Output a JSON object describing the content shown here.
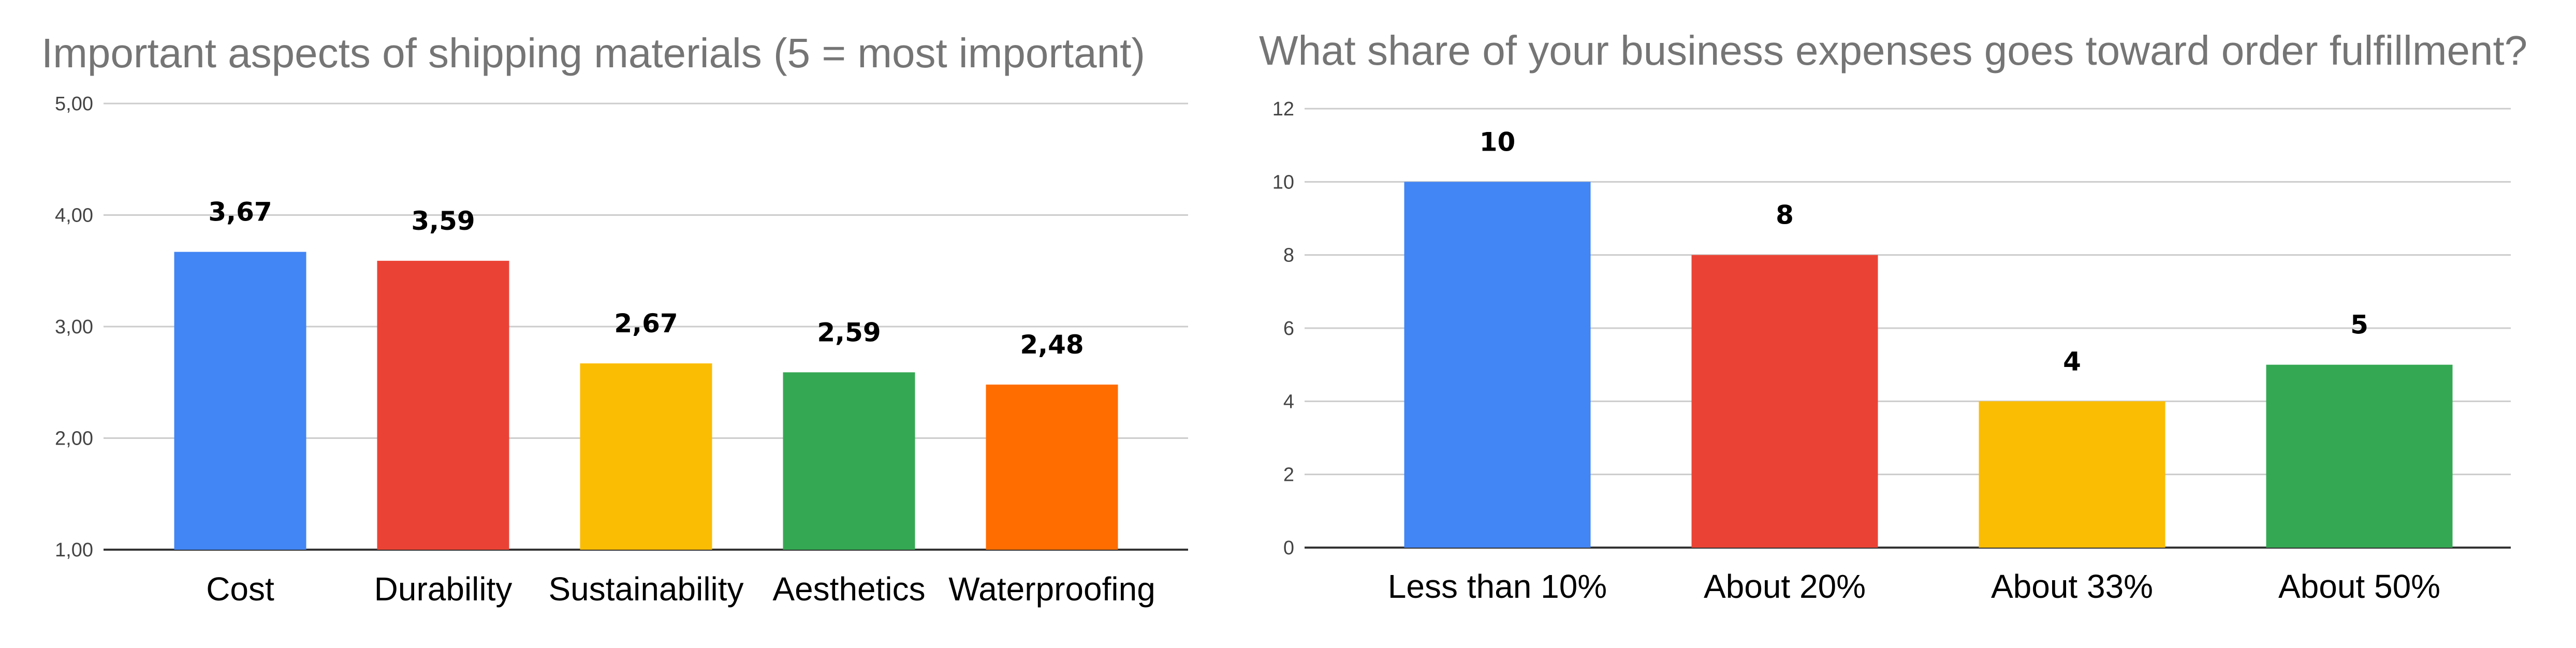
{
  "chart_data": [
    {
      "type": "bar",
      "title": "Important aspects of shipping materials (5 = most important)",
      "categories": [
        "Cost",
        "Durability",
        "Sustainability",
        "Aesthetics",
        "Waterproofing"
      ],
      "values": [
        3.67,
        3.59,
        2.67,
        2.59,
        2.48
      ],
      "value_labels": [
        "3,67",
        "3,59",
        "2,67",
        "2,59",
        "2,48"
      ],
      "colors": [
        "#4285F4",
        "#EA4335",
        "#FBBC04",
        "#34A853",
        "#FF6D01"
      ],
      "ylim": [
        1,
        5
      ],
      "yticks": [
        1,
        2,
        3,
        4,
        5
      ],
      "ytick_labels": [
        "1,00",
        "2,00",
        "3,00",
        "4,00",
        "5,00"
      ],
      "xlabel": "",
      "ylabel": "",
      "grid": true,
      "legend": "none"
    },
    {
      "type": "bar",
      "title": "What share of your business expenses goes toward order fulfillment?",
      "categories": [
        "Less than 10%",
        "About 20%",
        "About 33%",
        "About 50%"
      ],
      "values": [
        10,
        8,
        4,
        5
      ],
      "value_labels": [
        "10",
        "8",
        "4",
        "5"
      ],
      "colors": [
        "#4285F4",
        "#EA4335",
        "#FBBC04",
        "#34A853"
      ],
      "ylim": [
        0,
        12
      ],
      "yticks": [
        0,
        2,
        4,
        6,
        8,
        10,
        12
      ],
      "ytick_labels": [
        "0",
        "2",
        "4",
        "6",
        "8",
        "10",
        "12"
      ],
      "xlabel": "",
      "ylabel": "",
      "grid": true,
      "legend": "none"
    }
  ]
}
